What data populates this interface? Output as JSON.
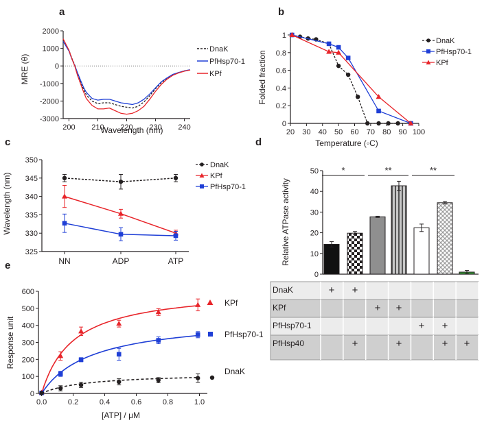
{
  "chart_data": [
    {
      "panel": "a",
      "type": "line",
      "xlabel": "Wavelength (nm)",
      "ylabel": "MRE (θ)",
      "xlim": [
        198,
        242
      ],
      "ylim": [
        -3000,
        2000
      ],
      "xticks": [
        200,
        210,
        220,
        230,
        240
      ],
      "yticks": [
        2000,
        1000,
        0,
        -1000,
        -2000,
        -3000
      ],
      "zero_line": true,
      "series": [
        {
          "name": "DnaK",
          "color": "#231f20",
          "dash": "3,2",
          "x": [
            198,
            200,
            201,
            202,
            203,
            204,
            205,
            206,
            208,
            210,
            212,
            214,
            216,
            218,
            220,
            222,
            224,
            226,
            228,
            230,
            232,
            234,
            236,
            238,
            240,
            242
          ],
          "y": [
            1500,
            900,
            450,
            50,
            -450,
            -900,
            -1300,
            -1650,
            -2000,
            -2150,
            -2100,
            -2100,
            -2200,
            -2300,
            -2350,
            -2400,
            -2300,
            -2050,
            -1700,
            -1300,
            -950,
            -700,
            -500,
            -380,
            -280,
            -220
          ]
        },
        {
          "name": "PfHsp70-1",
          "color": "#1f3fd6",
          "dash": "",
          "x": [
            198,
            200,
            201,
            202,
            203,
            204,
            205,
            206,
            208,
            210,
            212,
            214,
            216,
            218,
            220,
            222,
            224,
            226,
            228,
            230,
            232,
            234,
            236,
            238,
            240,
            242
          ],
          "y": [
            1400,
            850,
            400,
            30,
            -400,
            -800,
            -1200,
            -1500,
            -1850,
            -1950,
            -1900,
            -1900,
            -2000,
            -2100,
            -2150,
            -2200,
            -2100,
            -1900,
            -1600,
            -1250,
            -900,
            -680,
            -480,
            -370,
            -280,
            -220
          ]
        },
        {
          "name": "KPf",
          "color": "#e8252a",
          "dash": "",
          "x": [
            198,
            200,
            201,
            202,
            203,
            204,
            205,
            206,
            208,
            210,
            212,
            214,
            216,
            218,
            220,
            222,
            224,
            226,
            228,
            230,
            232,
            234,
            236,
            238,
            240,
            242
          ],
          "y": [
            1550,
            900,
            420,
            0,
            -550,
            -1000,
            -1450,
            -1850,
            -2250,
            -2450,
            -2450,
            -2400,
            -2550,
            -2700,
            -2750,
            -2700,
            -2550,
            -2300,
            -1900,
            -1450,
            -1050,
            -750,
            -530,
            -400,
            -300,
            -230
          ]
        }
      ]
    },
    {
      "panel": "b",
      "type": "line",
      "xlabel": "Temperature (◦C)",
      "ylabel": "Folded fraction",
      "xlim": [
        20,
        100
      ],
      "ylim": [
        0,
        1
      ],
      "xticks": [
        20,
        30,
        40,
        50,
        60,
        70,
        80,
        90,
        100
      ],
      "yticks": [
        0,
        0.2,
        0.4,
        0.6,
        0.8,
        1
      ],
      "series": [
        {
          "name": "DnaK",
          "color": "#231f20",
          "marker": "circle",
          "dash": "3,2",
          "x": [
            21,
            26,
            31,
            36,
            44,
            50,
            56,
            62,
            68,
            75,
            81,
            87,
            95
          ],
          "y": [
            1.0,
            0.98,
            0.96,
            0.95,
            0.9,
            0.65,
            0.55,
            0.3,
            0.0,
            0.0,
            0.0,
            0.0,
            0.0
          ]
        },
        {
          "name": "PfHsp70-1",
          "color": "#1f3fd6",
          "marker": "square",
          "dash": "",
          "x": [
            21,
            44,
            50,
            56,
            75,
            95
          ],
          "y": [
            1.0,
            0.9,
            0.86,
            0.74,
            0.14,
            0.0
          ]
        },
        {
          "name": "KPf",
          "color": "#e8252a",
          "marker": "triangle",
          "dash": "",
          "x": [
            21,
            44,
            50,
            75,
            95
          ],
          "y": [
            1.0,
            0.81,
            0.8,
            0.3,
            0.0
          ]
        }
      ]
    },
    {
      "panel": "c",
      "type": "line",
      "xlabel": "",
      "ylabel": "Wavelength (nm)",
      "categories": [
        "NN",
        "ADP",
        "ATP"
      ],
      "ylim": [
        325,
        350
      ],
      "yticks": [
        325,
        330,
        335,
        340,
        345,
        350
      ],
      "series": [
        {
          "name": "DnaK",
          "color": "#231f20",
          "marker": "circle",
          "dash": "3,2",
          "values": [
            345,
            344,
            345
          ],
          "errors": [
            1.0,
            2.0,
            1.0
          ]
        },
        {
          "name": "KPf",
          "color": "#e8252a",
          "marker": "triangle",
          "dash": "",
          "values": [
            340,
            335.3,
            330
          ],
          "errors": [
            3.0,
            1.2,
            0.8
          ]
        },
        {
          "name": "PfHsp70-1",
          "color": "#1f3fd6",
          "marker": "square",
          "dash": "",
          "values": [
            332.7,
            329.7,
            329.3
          ],
          "errors": [
            2.5,
            1.8,
            1.2
          ]
        }
      ]
    },
    {
      "panel": "d",
      "type": "bar",
      "ylabel": "Relative ATPase  activity",
      "ylim": [
        0,
        50
      ],
      "yticks": [
        0,
        10,
        20,
        30,
        40,
        50
      ],
      "bars": [
        {
          "value": 14.4,
          "error": 1.3,
          "fill": "black"
        },
        {
          "value": 19.8,
          "error": 0.8,
          "fill": "checker"
        },
        {
          "value": 27.7,
          "error": 0.3,
          "fill": "gray"
        },
        {
          "value": 42.7,
          "error": 2.2,
          "fill": "stripes"
        },
        {
          "value": 22.4,
          "error": 1.8,
          "fill": "white"
        },
        {
          "value": 34.5,
          "error": 0.6,
          "fill": "diamond"
        },
        {
          "value": 1.0,
          "error": 0.8,
          "fill": "green"
        }
      ],
      "significance": [
        {
          "label": "*",
          "from": 0,
          "to": 1
        },
        {
          "label": "**",
          "from": 2,
          "to": 3
        },
        {
          "label": "**",
          "from": 4,
          "to": 5
        }
      ],
      "table": {
        "rows": [
          {
            "label": "DnaK",
            "marks": [
              "+",
              "+",
              "",
              "",
              "",
              "",
              ""
            ]
          },
          {
            "label": "KPf",
            "marks": [
              "",
              "",
              "+",
              "+",
              "",
              "",
              ""
            ]
          },
          {
            "label": "PfHsp70-1",
            "marks": [
              "",
              "",
              "",
              "",
              "+",
              "+",
              ""
            ]
          },
          {
            "label": "PfHsp40",
            "marks": [
              "",
              "+",
              "",
              "+",
              "",
              "+",
              "+"
            ]
          }
        ]
      }
    },
    {
      "panel": "e",
      "type": "scatter",
      "xlabel": "[ATP] / μM",
      "ylabel": "Response unit",
      "xlim": [
        -0.02,
        1.05
      ],
      "ylim": [
        0,
        600
      ],
      "xticks": [
        0.0,
        0.2,
        0.4,
        0.6,
        0.8,
        1.0
      ],
      "xtick_labels": [
        "0.0",
        "0.2",
        "0.4",
        "0.6",
        "0.8",
        "1.0"
      ],
      "yticks": [
        0,
        100,
        200,
        300,
        400,
        500,
        600
      ],
      "series": [
        {
          "name": "KPf",
          "color": "#e8252a",
          "marker": "triangle",
          "dash": "",
          "x": [
            0,
            0.12,
            0.25,
            0.49,
            0.74,
            0.99
          ],
          "y": [
            5,
            220,
            365,
            410,
            478,
            520
          ],
          "errors": [
            5,
            25,
            25,
            20,
            20,
            35
          ],
          "fit": {
            "vmax": 620,
            "kd": 0.2
          }
        },
        {
          "name": "PfHsp70-1",
          "color": "#1f3fd6",
          "marker": "square",
          "dash": "",
          "x": [
            0,
            0.12,
            0.25,
            0.49,
            0.74,
            0.99
          ],
          "y": [
            3,
            115,
            198,
            230,
            312,
            345
          ],
          "errors": [
            5,
            15,
            12,
            35,
            20,
            18
          ],
          "fit": {
            "vmax": 450,
            "kd": 0.32
          }
        },
        {
          "name": "DnaK",
          "color": "#231f20",
          "marker": "circle",
          "dash": "4,3",
          "x": [
            0,
            0.12,
            0.25,
            0.49,
            0.74,
            0.99
          ],
          "y": [
            2,
            30,
            50,
            68,
            78,
            90
          ],
          "errors": [
            3,
            15,
            15,
            18,
            15,
            25
          ],
          "fit": {
            "vmax": 120,
            "kd": 0.28
          }
        }
      ]
    }
  ]
}
